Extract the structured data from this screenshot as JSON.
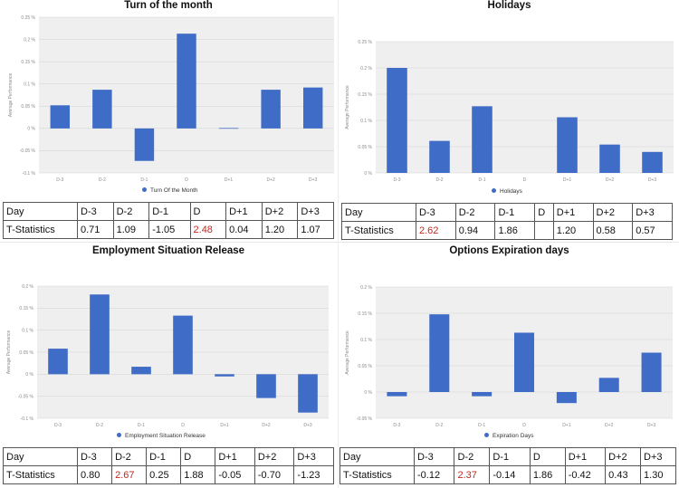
{
  "colors": {
    "bar": "#3f6cc6",
    "plot_bg": "#efefef",
    "grid": "#d6d6d6",
    "significant": "#c0281f"
  },
  "row_labels": {
    "header": "Day",
    "tstat": "T-Statistics"
  },
  "charts": [
    {
      "title": "Turn of the month",
      "legend": "Turn Of the Month",
      "ylabel": "Average Performance",
      "chart_type": "bar",
      "categories": [
        "D-3",
        "D-2",
        "D-1",
        "D",
        "D+1",
        "D+2",
        "D+3"
      ],
      "values": [
        0.052,
        0.087,
        -0.073,
        0.213,
        0.001,
        0.087,
        0.092
      ],
      "yticks": [
        -0.1,
        -0.05,
        0,
        0.05,
        0.1,
        0.15,
        0.2,
        0.25
      ],
      "ytick_labels": [
        "-0.1 %",
        "-0.05 %",
        "0 %",
        "0.05 %",
        "0.1 %",
        "0.15 %",
        "0.2 %",
        "0.25 %"
      ],
      "table": [
        {
          "day": "D-3",
          "t": "0.71",
          "sig": false
        },
        {
          "day": "D-2",
          "t": "1.09",
          "sig": false
        },
        {
          "day": "D-1",
          "t": "-1.05",
          "sig": false
        },
        {
          "day": "D",
          "t": "2.48",
          "sig": true
        },
        {
          "day": "D+1",
          "t": "0.04",
          "sig": false
        },
        {
          "day": "D+2",
          "t": "1.20",
          "sig": false
        },
        {
          "day": "D+3",
          "t": "1.07",
          "sig": false
        }
      ]
    },
    {
      "title": "Holidays",
      "legend": "Holidays",
      "ylabel": "Average Performance",
      "chart_type": "bar",
      "categories": [
        "D-3",
        "D-2",
        "D-1",
        "D",
        "D+1",
        "D+2",
        "D+3"
      ],
      "values": [
        0.2,
        0.061,
        0.127,
        0,
        0.106,
        0.054,
        0.04
      ],
      "yticks": [
        0,
        0.05,
        0.1,
        0.15,
        0.2,
        0.25
      ],
      "ytick_labels": [
        "0 %",
        "0.05 %",
        "0.1 %",
        "0.15 %",
        "0.2 %",
        "0.25 %"
      ],
      "table": [
        {
          "day": "D-3",
          "t": "2.62",
          "sig": true
        },
        {
          "day": "D-2",
          "t": "0.94",
          "sig": false
        },
        {
          "day": "D-1",
          "t": "1.86",
          "sig": false
        },
        {
          "day": "D",
          "t": "",
          "sig": false
        },
        {
          "day": "D+1",
          "t": "1.20",
          "sig": false
        },
        {
          "day": "D+2",
          "t": "0.58",
          "sig": false
        },
        {
          "day": "D+3",
          "t": "0.57",
          "sig": false
        }
      ]
    },
    {
      "title": "Employment Situation Release",
      "legend": "Employment Situation Release",
      "ylabel": "Average Performance",
      "chart_type": "bar",
      "categories": [
        "D-3",
        "D-2",
        "D-1",
        "D",
        "D+1",
        "D+2",
        "D+3"
      ],
      "values": [
        0.058,
        0.181,
        0.017,
        0.133,
        -0.005,
        -0.054,
        -0.087
      ],
      "yticks": [
        -0.1,
        -0.05,
        0,
        0.05,
        0.1,
        0.15,
        0.2
      ],
      "ytick_labels": [
        "-0.1 %",
        "-0.05 %",
        "0 %",
        "0.05 %",
        "0.1 %",
        "0.15 %",
        "0.2 %"
      ],
      "table": [
        {
          "day": "D-3",
          "t": "0.80",
          "sig": false
        },
        {
          "day": "D-2",
          "t": "2.67",
          "sig": true
        },
        {
          "day": "D-1",
          "t": "0.25",
          "sig": false
        },
        {
          "day": "D",
          "t": "1.88",
          "sig": false
        },
        {
          "day": "D+1",
          "t": "-0.05",
          "sig": false
        },
        {
          "day": "D+2",
          "t": "-0.70",
          "sig": false
        },
        {
          "day": "D+3",
          "t": "-1.23",
          "sig": false
        }
      ]
    },
    {
      "title": "Options Expiration days",
      "legend": "Expiration Days",
      "ylabel": "Average Performance",
      "chart_type": "bar",
      "categories": [
        "D-3",
        "D-2",
        "D-1",
        "D",
        "D+1",
        "D+2",
        "D+3"
      ],
      "values": [
        -0.008,
        0.148,
        -0.008,
        0.113,
        -0.021,
        0.027,
        0.075
      ],
      "yticks": [
        -0.05,
        0,
        0.05,
        0.1,
        0.15,
        0.2
      ],
      "ytick_labels": [
        "-0.05 %",
        "0 %",
        "0.05 %",
        "0.1 %",
        "0.15 %",
        "0.2 %"
      ],
      "table": [
        {
          "day": "D-3",
          "t": "-0.12",
          "sig": false
        },
        {
          "day": "D-2",
          "t": "2.37",
          "sig": true
        },
        {
          "day": "D-1",
          "t": "-0.14",
          "sig": false
        },
        {
          "day": "D",
          "t": "1.86",
          "sig": false
        },
        {
          "day": "D+1",
          "t": "-0.42",
          "sig": false
        },
        {
          "day": "D+2",
          "t": "0.43",
          "sig": false
        },
        {
          "day": "D+3",
          "t": "1.30",
          "sig": false
        }
      ]
    }
  ],
  "chart_data": [
    {
      "type": "bar",
      "title": "Turn of the month",
      "xlabel": "",
      "ylabel": "Average Performance",
      "categories": [
        "D-3",
        "D-2",
        "D-1",
        "D",
        "D+1",
        "D+2",
        "D+3"
      ],
      "series": [
        {
          "name": "Turn Of the Month",
          "values": [
            0.052,
            0.087,
            -0.073,
            0.213,
            0.001,
            0.087,
            0.092
          ]
        }
      ],
      "ylim": [
        -0.1,
        0.25
      ],
      "unit": "%",
      "grid": true,
      "legend": "bottom"
    },
    {
      "type": "bar",
      "title": "Holidays",
      "xlabel": "",
      "ylabel": "Average Performance",
      "categories": [
        "D-3",
        "D-2",
        "D-1",
        "D",
        "D+1",
        "D+2",
        "D+3"
      ],
      "series": [
        {
          "name": "Holidays",
          "values": [
            0.2,
            0.061,
            0.127,
            0,
            0.106,
            0.054,
            0.04
          ]
        }
      ],
      "ylim": [
        0,
        0.25
      ],
      "unit": "%",
      "grid": true,
      "legend": "bottom"
    },
    {
      "type": "bar",
      "title": "Employment Situation Release",
      "xlabel": "",
      "ylabel": "Average Performance",
      "categories": [
        "D-3",
        "D-2",
        "D-1",
        "D",
        "D+1",
        "D+2",
        "D+3"
      ],
      "series": [
        {
          "name": "Employment Situation Release",
          "values": [
            0.058,
            0.181,
            0.017,
            0.133,
            -0.005,
            -0.054,
            -0.087
          ]
        }
      ],
      "ylim": [
        -0.1,
        0.2
      ],
      "unit": "%",
      "grid": true,
      "legend": "bottom"
    },
    {
      "type": "bar",
      "title": "Options Expiration days",
      "xlabel": "",
      "ylabel": "Average Performance",
      "categories": [
        "D-3",
        "D-2",
        "D-1",
        "D",
        "D+1",
        "D+2",
        "D+3"
      ],
      "series": [
        {
          "name": "Expiration Days",
          "values": [
            -0.008,
            0.148,
            -0.008,
            0.113,
            -0.021,
            0.027,
            0.075
          ]
        }
      ],
      "ylim": [
        -0.05,
        0.2
      ],
      "unit": "%",
      "grid": true,
      "legend": "bottom"
    }
  ]
}
